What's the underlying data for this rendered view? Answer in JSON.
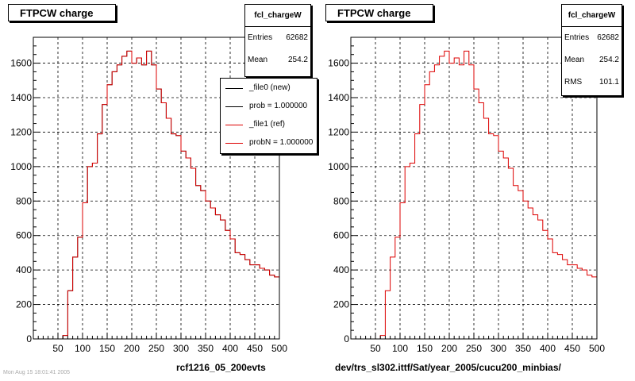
{
  "chart_data": [
    {
      "type": "histogram",
      "title": "FTPCW charge",
      "xlim": [
        0,
        500
      ],
      "ylim": [
        0,
        1750
      ],
      "xticks": [
        50,
        100,
        150,
        200,
        250,
        300,
        350,
        400,
        450,
        500
      ],
      "yticks": [
        0,
        200,
        400,
        600,
        800,
        1000,
        1200,
        1400,
        1600
      ],
      "grid": true,
      "bin_width": 10,
      "bin_edges_start": 0,
      "stats": {
        "name": "fcl_chargeW",
        "rows": [
          {
            "label": "Entries",
            "value": "62682"
          },
          {
            "label": "Mean",
            "value": "254.2"
          }
        ]
      },
      "legend": {
        "placement": "top-right",
        "entries": [
          {
            "label": "_file0 (new)",
            "color": "#000000"
          },
          {
            "label": "prob = 1.000000",
            "color": "#000000"
          },
          {
            "label": "_file1 (ref)",
            "color": "#dd0000"
          },
          {
            "label": "probN = 1.000000",
            "color": "#dd0000"
          }
        ]
      },
      "caption": "rcf1216_05_200evts",
      "series": [
        {
          "name": "_file0 (new)",
          "color": "#000000",
          "values": [
            0,
            0,
            0,
            0,
            0,
            0,
            20,
            280,
            475,
            590,
            790,
            1000,
            1020,
            1190,
            1360,
            1475,
            1550,
            1590,
            1640,
            1670,
            1600,
            1630,
            1590,
            1670,
            1590,
            1450,
            1370,
            1280,
            1190,
            1180,
            1090,
            1050,
            990,
            890,
            860,
            800,
            760,
            720,
            690,
            630,
            580,
            500,
            490,
            460,
            430,
            430,
            410,
            400,
            370,
            360
          ]
        },
        {
          "name": "_file1 (ref)",
          "color": "#dd0000",
          "values": [
            0,
            0,
            0,
            0,
            0,
            0,
            20,
            280,
            475,
            590,
            790,
            1000,
            1020,
            1190,
            1360,
            1475,
            1550,
            1590,
            1640,
            1670,
            1600,
            1630,
            1590,
            1670,
            1590,
            1450,
            1370,
            1280,
            1190,
            1180,
            1090,
            1050,
            990,
            890,
            860,
            800,
            760,
            720,
            690,
            630,
            580,
            500,
            490,
            460,
            430,
            430,
            410,
            400,
            370,
            360
          ]
        }
      ]
    },
    {
      "type": "histogram",
      "title": "FTPCW charge",
      "xlim": [
        0,
        500
      ],
      "ylim": [
        0,
        1750
      ],
      "xticks": [
        50,
        100,
        150,
        200,
        250,
        300,
        350,
        400,
        450,
        500
      ],
      "yticks": [
        0,
        200,
        400,
        600,
        800,
        1000,
        1200,
        1400,
        1600
      ],
      "grid": true,
      "bin_width": 10,
      "bin_edges_start": 0,
      "stats": {
        "name": "fcl_chargeW",
        "rows": [
          {
            "label": "Entries",
            "value": "62682"
          },
          {
            "label": "Mean",
            "value": "254.2"
          },
          {
            "label": "RMS",
            "value": "101.1"
          }
        ]
      },
      "caption": "dev/trs_sl302.ittf/Sat/year_2005/cucu200_minbias/",
      "series": [
        {
          "name": "",
          "color": "#dd0000",
          "values": [
            0,
            0,
            0,
            0,
            0,
            0,
            20,
            280,
            475,
            590,
            790,
            1000,
            1020,
            1190,
            1360,
            1475,
            1550,
            1590,
            1640,
            1670,
            1600,
            1630,
            1590,
            1670,
            1590,
            1450,
            1370,
            1280,
            1190,
            1180,
            1090,
            1050,
            990,
            890,
            860,
            800,
            760,
            720,
            690,
            630,
            580,
            500,
            490,
            460,
            430,
            430,
            410,
            400,
            370,
            360
          ]
        }
      ]
    }
  ],
  "footer": "Mon Aug 15 18:01:41 2005"
}
